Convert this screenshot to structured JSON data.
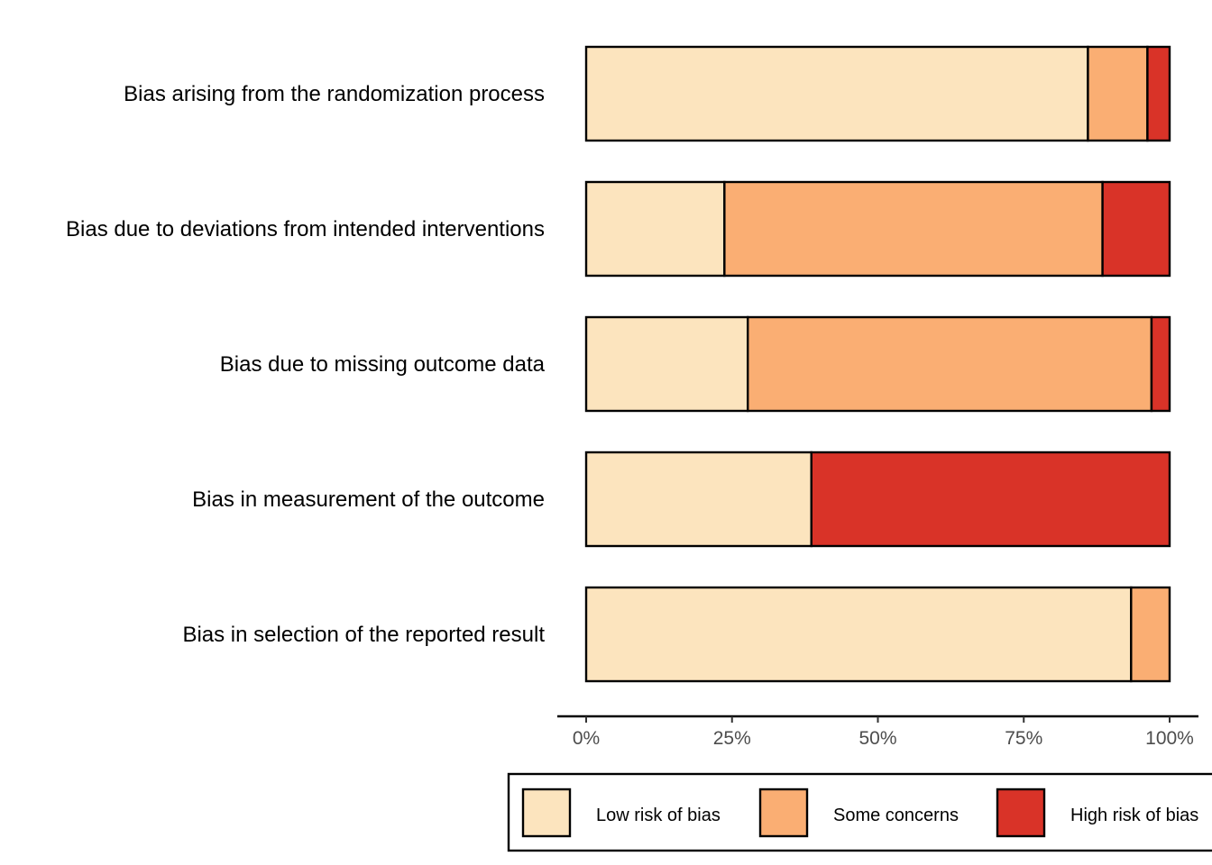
{
  "chart_data": {
    "type": "bar",
    "orientation": "horizontal",
    "stacked": true,
    "title": "",
    "xlabel": "",
    "ylabel": "",
    "xlim": [
      0,
      100
    ],
    "x_ticks": [
      0,
      25,
      50,
      75,
      100
    ],
    "x_tick_labels": [
      "0%",
      "25%",
      "50%",
      "75%",
      "100%"
    ],
    "categories": [
      "Bias arising from the randomization process",
      "Bias due to deviations from intended interventions",
      "Bias due to missing outcome data",
      "Bias in measurement of the outcome",
      "Bias in selection of the reported result"
    ],
    "series": [
      {
        "name": "Low risk of bias",
        "color": "#FCE4BE",
        "values": [
          86,
          23.7,
          27.7,
          38.6,
          93.4
        ]
      },
      {
        "name": "Some concerns",
        "color": "#FAAE73",
        "values": [
          10.2,
          64.8,
          69.2,
          0,
          6.6
        ]
      },
      {
        "name": "High risk of bias",
        "color": "#D93328",
        "values": [
          3.8,
          11.5,
          3.1,
          61.4,
          0
        ]
      }
    ],
    "legend_position": "bottom",
    "grid": false
  }
}
